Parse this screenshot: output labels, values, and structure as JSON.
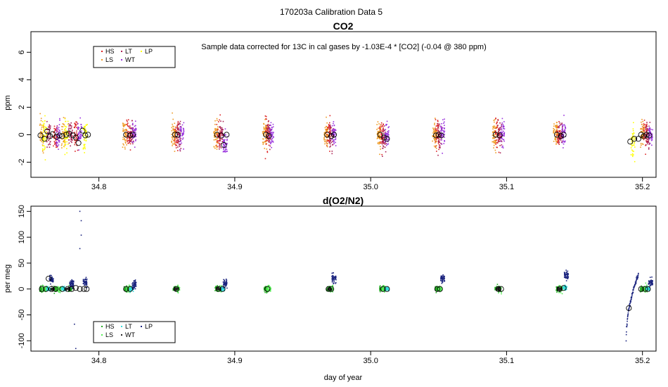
{
  "page": {
    "suptitle": "170203a   Calibration Data 5"
  },
  "chart_data": [
    {
      "type": "scatter",
      "title": "CO2",
      "ylabel": "ppm",
      "xlabel": "",
      "note": "Sample data corrected for 13C in cal gases by -1.03E-4 * [CO2] (-0.04 @ 380 ppm)",
      "xlim": [
        34.75,
        35.21
      ],
      "ylim": [
        -3.1,
        7.5
      ],
      "xticks": [
        34.8,
        34.9,
        35.0,
        35.1,
        35.2
      ],
      "xtick_labels": [
        "34.8",
        "34.9",
        "35.0",
        "35.1",
        "35.2"
      ],
      "yticks": [
        -2,
        0,
        2,
        4,
        6
      ],
      "ytick_labels": [
        "-2",
        "0",
        "2",
        "4",
        "6"
      ],
      "grid": false,
      "legend": {
        "position": "top-left",
        "entries": [
          "HS",
          "LS",
          "LT",
          "WT",
          "LP"
        ]
      },
      "series": [
        {
          "name": "HS",
          "color": "#dd2222",
          "centers": [
            34.768,
            34.783,
            34.822,
            34.857,
            34.888,
            34.924,
            34.969,
            35.008,
            35.049,
            35.093,
            35.138,
            35.202
          ],
          "values": [
            0,
            0,
            0,
            0,
            0,
            0,
            0,
            0,
            0,
            0,
            0,
            0
          ],
          "spread": 1.0
        },
        {
          "name": "LS",
          "color": "#ee9a22",
          "centers": [
            34.758,
            34.774,
            34.819,
            34.855,
            34.886,
            34.922,
            34.967,
            35.006,
            35.047,
            35.091,
            35.136,
            35.2
          ],
          "values": [
            0,
            0,
            0,
            0,
            0,
            0,
            0,
            0,
            0,
            0,
            0,
            0
          ],
          "spread": 1.0
        },
        {
          "name": "LT",
          "color": "#aa2255",
          "centers": [
            34.763,
            34.779,
            34.824,
            34.859,
            34.89,
            34.925,
            34.971,
            35.01,
            35.051,
            35.095,
            35.14,
            35.204
          ],
          "values": [
            0,
            0,
            0,
            0,
            0,
            0,
            -0.2,
            -0.3,
            0,
            0,
            0,
            0
          ],
          "spread": 0.9
        },
        {
          "name": "WT",
          "color": "#9933dd",
          "centers": [
            34.77,
            34.786,
            34.826,
            34.861,
            34.893,
            34.927,
            34.973,
            35.012,
            35.053,
            35.097,
            35.142,
            35.206
          ],
          "values": [
            0,
            0,
            0,
            0,
            -0.7,
            0,
            0,
            0,
            0,
            0,
            0,
            0
          ],
          "spread": 0.9
        },
        {
          "name": "LP",
          "color": "#ffff00",
          "centers": [
            34.76,
            34.776,
            34.79,
            35.193
          ],
          "values": [
            0,
            0,
            0,
            -0.5
          ],
          "spread": 1.1
        }
      ],
      "means": [
        [
          34.757,
          -0.05
        ],
        [
          34.76,
          -0.3
        ],
        [
          34.762,
          0.25
        ],
        [
          34.764,
          -0.1
        ],
        [
          34.766,
          0.05
        ],
        [
          34.769,
          -0.15
        ],
        [
          34.771,
          -0.05
        ],
        [
          34.773,
          -0.1
        ],
        [
          34.776,
          0.0
        ],
        [
          34.778,
          0.1
        ],
        [
          34.781,
          -0.05
        ],
        [
          34.783,
          -0.2
        ],
        [
          34.785,
          -0.6
        ],
        [
          34.788,
          0.3
        ],
        [
          34.79,
          -0.05
        ],
        [
          34.792,
          0.0
        ],
        [
          34.82,
          0.0
        ],
        [
          34.823,
          -0.05
        ],
        [
          34.825,
          0.0
        ],
        [
          34.856,
          0.0
        ],
        [
          34.858,
          0.0
        ],
        [
          34.887,
          0.0
        ],
        [
          34.89,
          -0.05
        ],
        [
          34.892,
          -0.75
        ],
        [
          34.894,
          0.0
        ],
        [
          34.923,
          0.0
        ],
        [
          34.925,
          -0.1
        ],
        [
          34.968,
          0.0
        ],
        [
          34.971,
          -0.1
        ],
        [
          34.973,
          0.0
        ],
        [
          35.007,
          0.0
        ],
        [
          35.01,
          -0.2
        ],
        [
          35.012,
          -0.3
        ],
        [
          35.048,
          -0.05
        ],
        [
          35.05,
          0.0
        ],
        [
          35.052,
          -0.05
        ],
        [
          35.092,
          0.0
        ],
        [
          35.095,
          -0.05
        ],
        [
          35.137,
          0.0
        ],
        [
          35.14,
          -0.1
        ],
        [
          35.142,
          0.0
        ],
        [
          35.191,
          -0.5
        ],
        [
          35.194,
          -0.3
        ],
        [
          35.197,
          -0.3
        ],
        [
          35.199,
          0.0
        ],
        [
          35.201,
          -0.1
        ],
        [
          35.203,
          0.0
        ],
        [
          35.205,
          -0.05
        ]
      ]
    },
    {
      "type": "scatter",
      "title": "d(O2/N2)",
      "ylabel": "per meg",
      "xlabel": "day of year",
      "xlim": [
        34.75,
        35.21
      ],
      "ylim": [
        -120,
        160
      ],
      "xticks": [
        34.8,
        34.9,
        35.0,
        35.1,
        35.2
      ],
      "xtick_labels": [
        "34.8",
        "34.9",
        "35.0",
        "35.1",
        "35.2"
      ],
      "yticks": [
        -100,
        -50,
        0,
        50,
        100,
        150
      ],
      "ytick_labels": [
        "-100",
        "-50",
        "0",
        "50",
        "100",
        "150"
      ],
      "grid": false,
      "legend": {
        "position": "bottom-left",
        "entries": [
          "HS",
          "LS",
          "LT",
          "WT",
          "LP"
        ]
      },
      "series": [
        {
          "name": "HS",
          "color": "#22aa22",
          "centers": [
            34.758,
            34.768,
            34.779,
            34.82,
            34.856,
            34.887,
            34.923,
            34.969,
            35.008,
            35.049,
            35.093,
            35.138,
            35.2
          ],
          "values": [
            0,
            0,
            0,
            0,
            0,
            0,
            0,
            0,
            0,
            0,
            0,
            0,
            0
          ],
          "spread": 5
        },
        {
          "name": "LS",
          "color": "#55ee55",
          "centers": [
            34.76,
            34.771,
            34.822,
            34.858,
            34.889,
            34.925,
            34.971,
            35.01,
            35.051,
            35.095,
            35.14,
            35.202
          ],
          "values": [
            0,
            0,
            0,
            0,
            0,
            0,
            0,
            0,
            0,
            0,
            0,
            0
          ],
          "spread": 6
        },
        {
          "name": "LT",
          "color": "#33dddd",
          "centers": [
            34.763,
            34.774,
            34.824,
            34.891,
            35.012,
            35.143,
            35.204
          ],
          "values": [
            0,
            0,
            0,
            0,
            0,
            3,
            0
          ],
          "spread": 4
        },
        {
          "name": "WT",
          "color": "#222222",
          "centers": [
            34.766,
            34.777,
            34.857,
            34.888,
            34.97,
            35.094,
            35.139
          ],
          "values": [
            0,
            0,
            0,
            0,
            0,
            0,
            0
          ],
          "spread": 3
        },
        {
          "name": "LP",
          "color": "#1a237e",
          "centers": [
            34.765,
            34.78,
            34.79,
            34.826,
            34.893,
            34.973,
            35.053,
            35.144,
            35.206
          ],
          "values": [
            18,
            10,
            12,
            8,
            10,
            21,
            20,
            27,
            12
          ],
          "spread": 8
        }
      ],
      "means": [
        [
          34.758,
          0
        ],
        [
          34.761,
          0
        ],
        [
          34.763,
          20
        ],
        [
          34.765,
          0
        ],
        [
          34.768,
          0
        ],
        [
          34.773,
          0
        ],
        [
          34.777,
          0
        ],
        [
          34.78,
          0
        ],
        [
          34.783,
          2
        ],
        [
          34.786,
          0
        ],
        [
          34.789,
          0
        ],
        [
          34.791,
          0
        ],
        [
          34.82,
          0
        ],
        [
          34.823,
          0
        ],
        [
          34.857,
          0
        ],
        [
          34.888,
          0
        ],
        [
          34.891,
          0
        ],
        [
          34.924,
          0
        ],
        [
          34.969,
          0
        ],
        [
          34.971,
          0
        ],
        [
          35.009,
          0
        ],
        [
          35.012,
          0
        ],
        [
          35.049,
          0
        ],
        [
          35.051,
          0
        ],
        [
          35.094,
          0
        ],
        [
          35.096,
          0
        ],
        [
          35.139,
          0
        ],
        [
          35.142,
          2
        ],
        [
          35.19,
          -37
        ],
        [
          35.199,
          0
        ],
        [
          35.202,
          0
        ],
        [
          35.204,
          0
        ]
      ],
      "ramp": {
        "x_start": 35.188,
        "x_end": 35.197,
        "y_start": -100,
        "y_end": 28
      },
      "outliers": [
        [
          34.782,
          -68
        ],
        [
          34.783,
          -115
        ],
        [
          34.786,
          150
        ],
        [
          34.787,
          132
        ],
        [
          34.787,
          104
        ],
        [
          34.786,
          78
        ]
      ]
    }
  ]
}
